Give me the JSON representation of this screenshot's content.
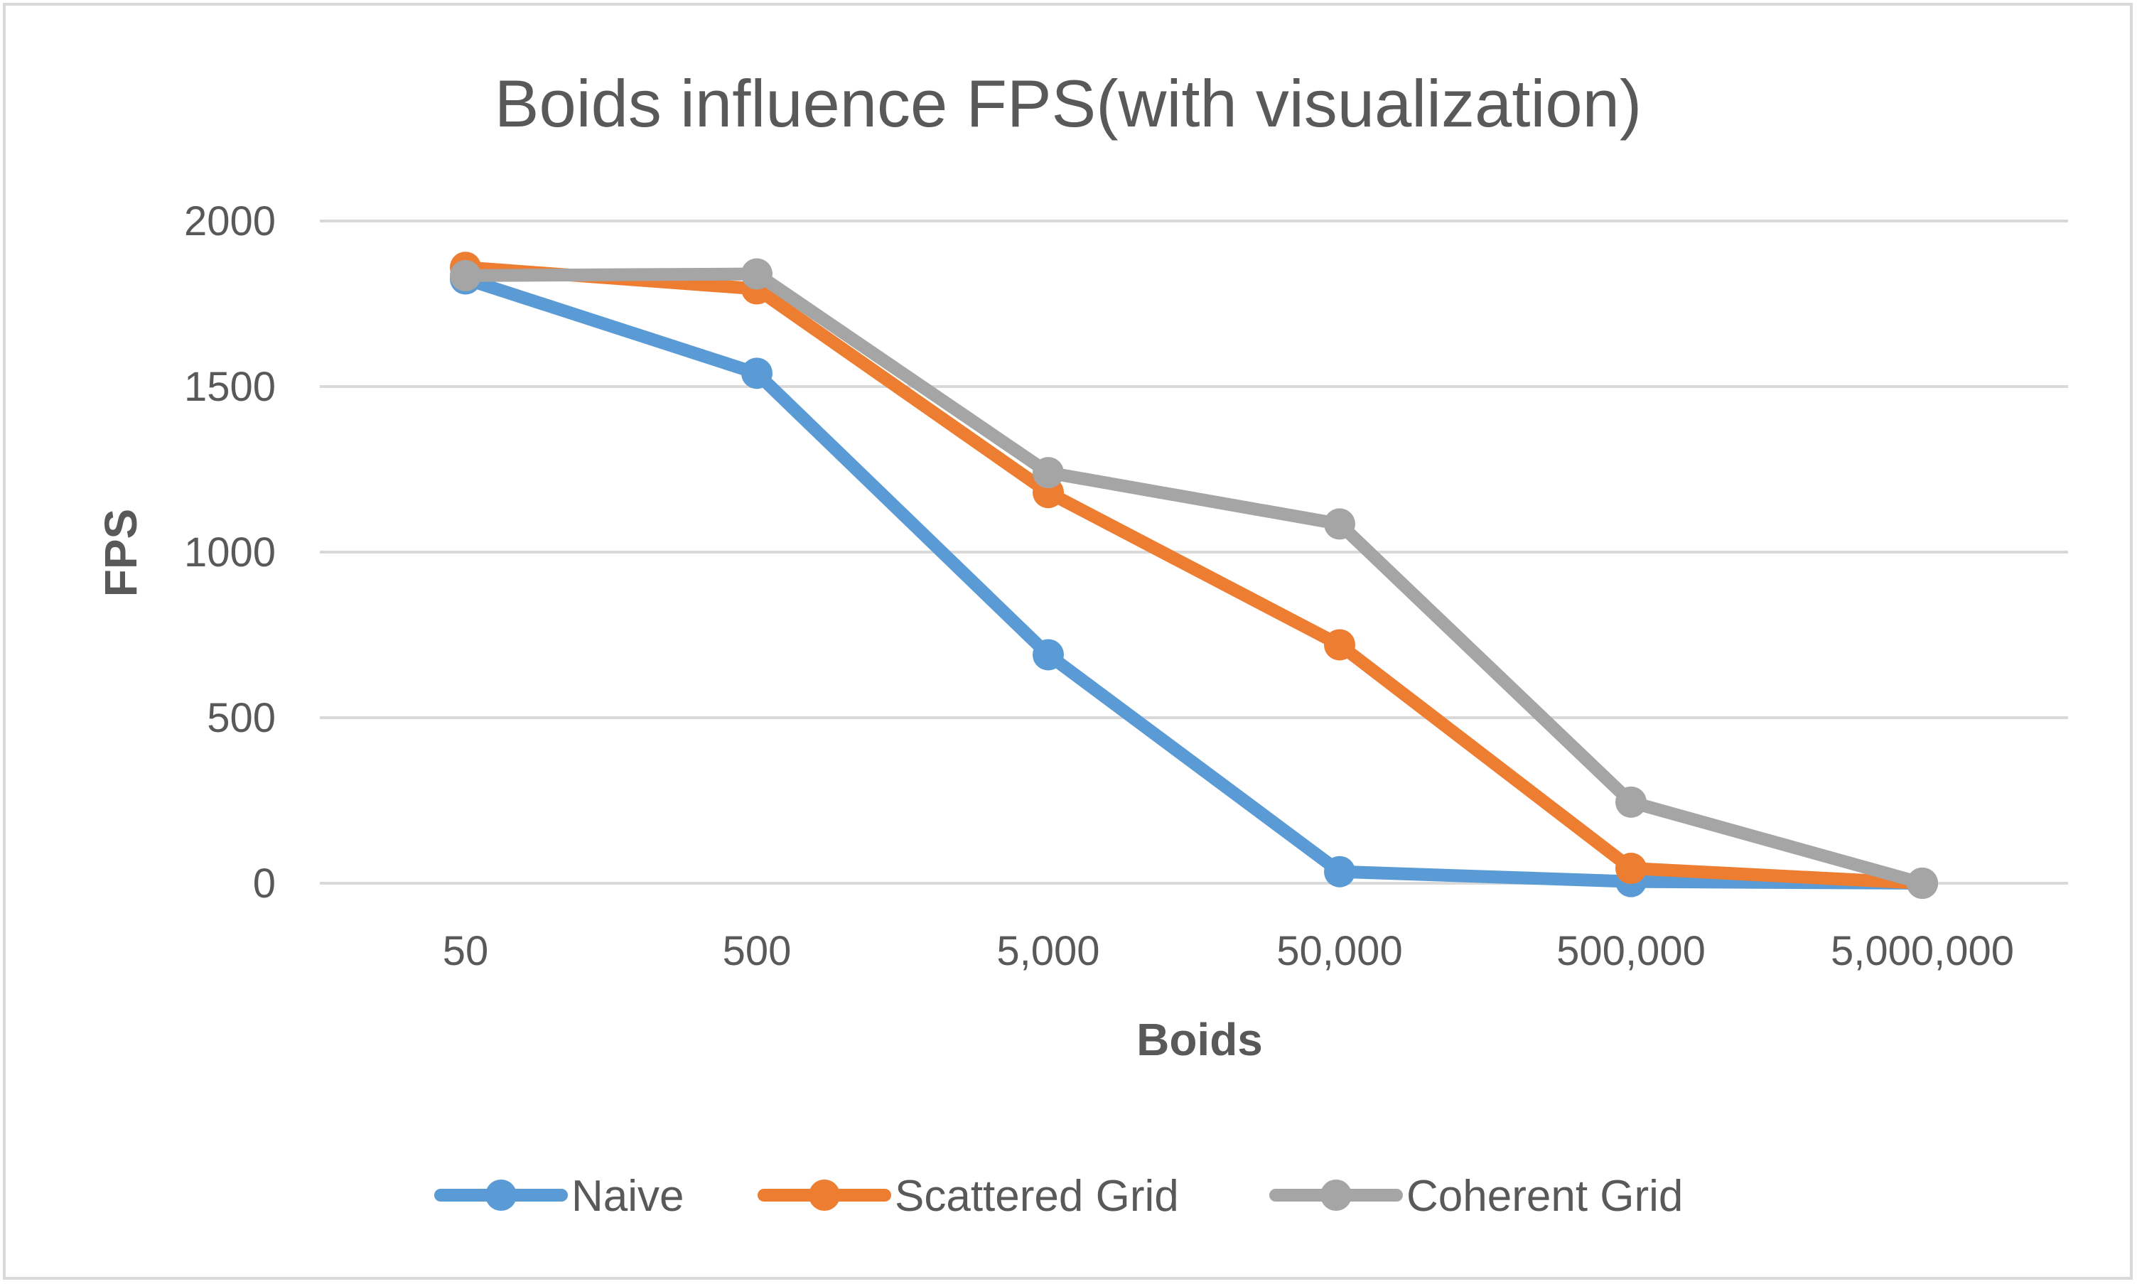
{
  "chart_data": {
    "type": "line",
    "title": "Boids influence FPS(with visualization)",
    "xlabel": "Boids",
    "ylabel": "FPS",
    "categories": [
      "50",
      "500",
      "5,000",
      "50,000",
      "500,000",
      "5,000,000"
    ],
    "ylim": [
      0,
      2000
    ],
    "yticks": [
      "0",
      "500",
      "1000",
      "1500",
      "2000"
    ],
    "grid": true,
    "legend_position": "bottom",
    "series": [
      {
        "name": "Naive",
        "color": "#5b9bd5",
        "values": [
          1825,
          1540,
          690,
          35,
          5,
          0
        ]
      },
      {
        "name": "Scattered Grid",
        "color": "#ed7d31",
        "values": [
          1860,
          1795,
          1180,
          720,
          45,
          0
        ]
      },
      {
        "name": "Coherent Grid",
        "color": "#a5a5a5",
        "values": [
          1835,
          1840,
          1240,
          1085,
          245,
          0
        ]
      }
    ]
  }
}
